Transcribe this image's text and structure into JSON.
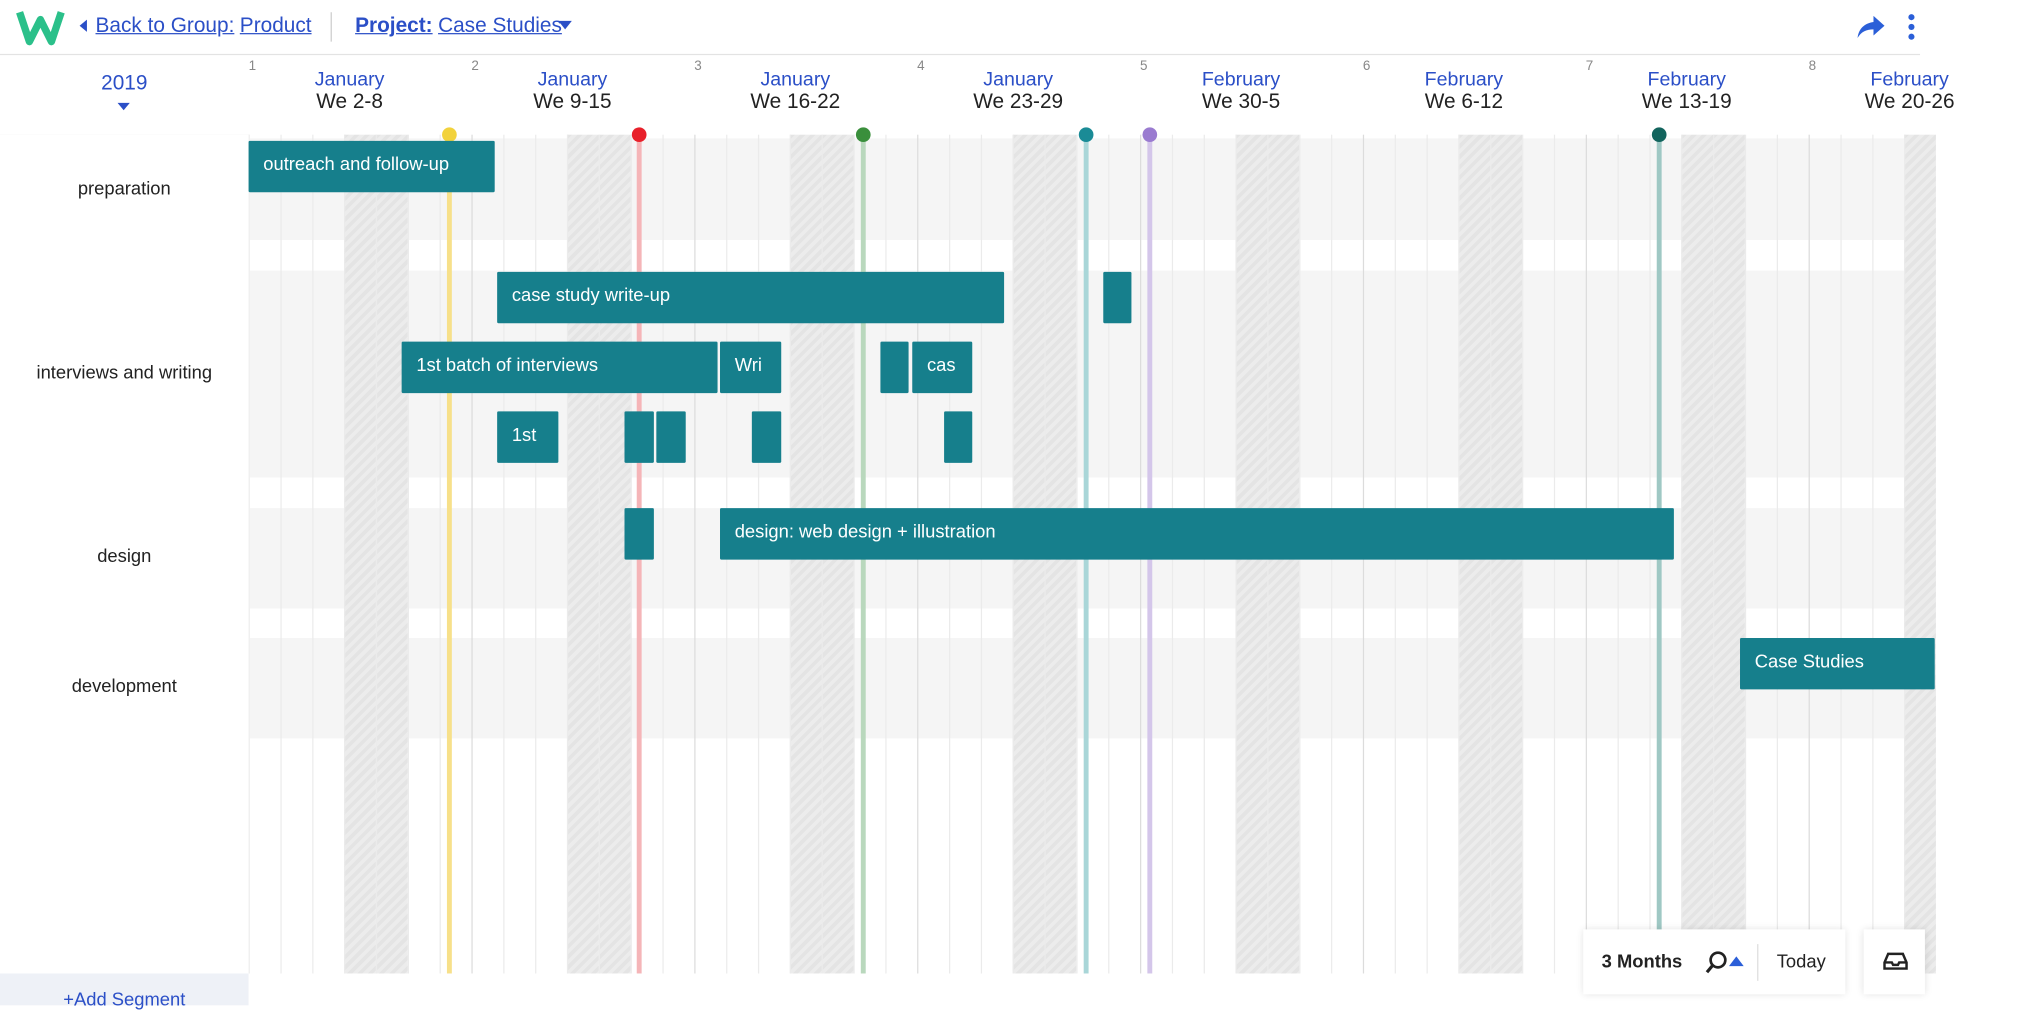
{
  "header": {
    "back_label": "Back to Group:",
    "group": "Product",
    "project_label": "Project:",
    "project": "Case Studies"
  },
  "year": "2019",
  "weeks": [
    {
      "number": 1,
      "month": "January",
      "label": "We 2-8"
    },
    {
      "number": 2,
      "month": "January",
      "label": "We 9-15"
    },
    {
      "number": 3,
      "month": "January",
      "label": "We 16-22"
    },
    {
      "number": 4,
      "month": "January",
      "label": "We 23-29"
    },
    {
      "number": 5,
      "month": "February",
      "label": "We 30-5"
    },
    {
      "number": 6,
      "month": "February",
      "label": "We 6-12"
    },
    {
      "number": 7,
      "month": "February",
      "label": "We 13-19"
    },
    {
      "number": 8,
      "month": "February",
      "label": "We 20-26"
    }
  ],
  "rows": [
    {
      "label": "preparation",
      "bars": [
        "outreach and follow-up"
      ]
    },
    {
      "label": "interviews and writing",
      "bars": [
        "case study write-up",
        "1st batch of interviews",
        "Wri",
        "cas",
        "1st"
      ]
    },
    {
      "label": "design",
      "bars": [
        "design: web design + illustration"
      ]
    },
    {
      "label": "development",
      "bars": [
        "Case Studies"
      ]
    }
  ],
  "add_segment": "+Add Segment",
  "controls": {
    "range": "3 Months",
    "today": "Today"
  }
}
